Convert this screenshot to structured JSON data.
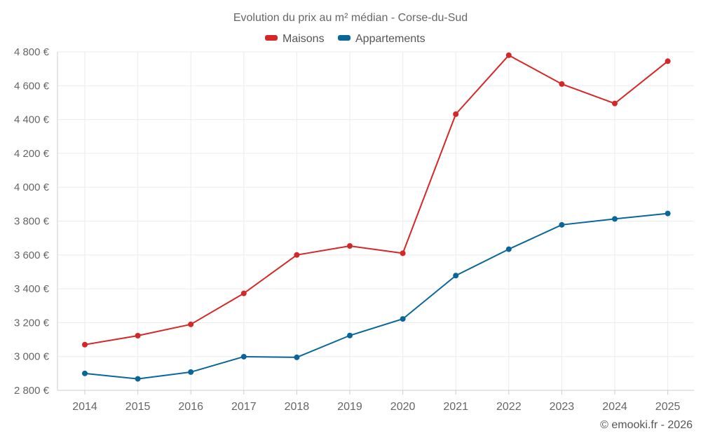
{
  "chart_data": {
    "type": "line",
    "title": "Evolution du prix au m² médian - Corse-du-Sud",
    "xlabel": "",
    "ylabel": "",
    "categories": [
      "2014",
      "2015",
      "2016",
      "2017",
      "2018",
      "2019",
      "2020",
      "2021",
      "2022",
      "2023",
      "2024",
      "2025"
    ],
    "ylim": [
      2800,
      4800
    ],
    "yticks": [
      2800,
      3000,
      3200,
      3400,
      3600,
      3800,
      4000,
      4200,
      4400,
      4600,
      4800
    ],
    "ytick_labels": [
      "2 800 €",
      "3 000 €",
      "3 200 €",
      "3 400 €",
      "3 600 €",
      "3 800 €",
      "4 000 €",
      "4 200 €",
      "4 400 €",
      "4 600 €",
      "4 800 €"
    ],
    "grid": true,
    "legend_position": "top-center",
    "series": [
      {
        "name": "Maisons",
        "color": "#d62728",
        "values": [
          3070,
          3123,
          3190,
          3373,
          3600,
          3653,
          3610,
          4432,
          4780,
          4610,
          4495,
          4745
        ]
      },
      {
        "name": "Appartements",
        "color": "#08669a",
        "values": [
          2900,
          2868,
          2908,
          2999,
          2995,
          3124,
          3222,
          3478,
          3634,
          3778,
          3813,
          3845
        ]
      }
    ]
  },
  "credit": "© emooki.fr - 2026"
}
